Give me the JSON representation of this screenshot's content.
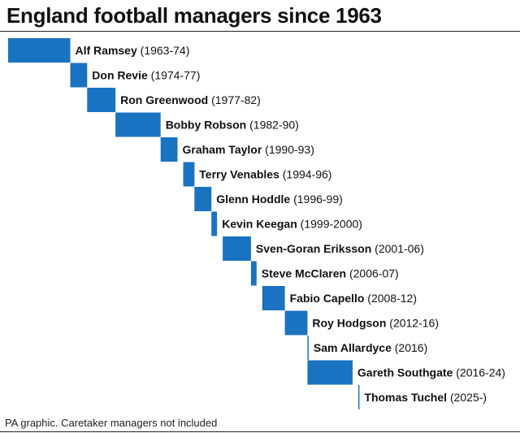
{
  "header": {
    "title": "England football managers since 1963"
  },
  "footer": {
    "source": "PA graphic. Caretaker managers not included"
  },
  "colors": {
    "bar": "#1a73c1",
    "text": "#111111"
  },
  "chart_data": {
    "type": "bar",
    "orientation": "horizontal-timeline",
    "x_unit": "year",
    "xlim": [
      1963,
      2026
    ],
    "items": [
      {
        "name": "Alf Ramsey",
        "years_label": "(1963-74)",
        "start": 1963,
        "end": 1974
      },
      {
        "name": "Don Revie",
        "years_label": "(1974-77)",
        "start": 1974,
        "end": 1977
      },
      {
        "name": "Ron Greenwood",
        "years_label": "(1977-82)",
        "start": 1977,
        "end": 1982
      },
      {
        "name": "Bobby Robson",
        "years_label": "(1982-90)",
        "start": 1982,
        "end": 1990
      },
      {
        "name": "Graham Taylor",
        "years_label": "(1990-93)",
        "start": 1990,
        "end": 1993
      },
      {
        "name": "Terry Venables",
        "years_label": "(1994-96)",
        "start": 1994,
        "end": 1996
      },
      {
        "name": "Glenn Hoddle",
        "years_label": "(1996-99)",
        "start": 1996,
        "end": 1999
      },
      {
        "name": "Kevin Keegan",
        "years_label": "(1999-2000)",
        "start": 1999,
        "end": 2000
      },
      {
        "name": "Sven-Goran Eriksson",
        "years_label": "(2001-06)",
        "start": 2001,
        "end": 2006
      },
      {
        "name": "Steve McClaren",
        "years_label": "(2006-07)",
        "start": 2006,
        "end": 2007
      },
      {
        "name": "Fabio Capello",
        "years_label": "(2008-12)",
        "start": 2008,
        "end": 2012
      },
      {
        "name": "Roy Hodgson",
        "years_label": "(2012-16)",
        "start": 2012,
        "end": 2016
      },
      {
        "name": "Sam Allardyce",
        "years_label": "(2016)",
        "start": 2016,
        "end": 2016
      },
      {
        "name": "Gareth Southgate",
        "years_label": "(2016-24)",
        "start": 2016,
        "end": 2024
      },
      {
        "name": "Thomas Tuchel",
        "years_label": "(2025-)",
        "start": 2025,
        "end": 2025
      }
    ]
  }
}
